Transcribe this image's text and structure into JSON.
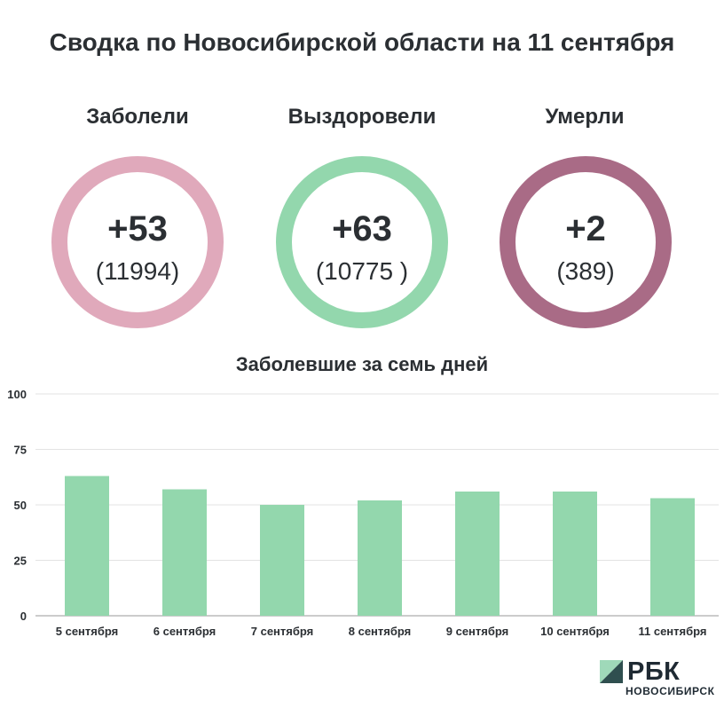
{
  "title": "Сводка по Новосибирской области на 11 сентября",
  "stats": [
    {
      "label": "Заболели",
      "value": "+53",
      "total": "(11994)",
      "color": "#e0a9bb"
    },
    {
      "label": "Выздоровели",
      "value": "+63",
      "total": "(10775 )",
      "color": "#93d7ad"
    },
    {
      "label": "Умерли",
      "value": "+2",
      "total": "(389)",
      "color": "#a96b86"
    }
  ],
  "chart_title": "Заболевшие за семь дней",
  "chart_data": {
    "type": "bar",
    "title": "Заболевшие за семь дней",
    "categories": [
      "5 сентября",
      "6 сентября",
      "7 сентября",
      "8 сентября",
      "9 сентября",
      "10 сентября",
      "11 сентября"
    ],
    "values": [
      63,
      57,
      50,
      52,
      56,
      56,
      53
    ],
    "ylim": [
      0,
      100
    ],
    "yticks": [
      "0",
      "25",
      "50",
      "75",
      "100"
    ],
    "bar_color": "#93d7ad",
    "grid": true
  },
  "logo": {
    "name": "РБК",
    "region": "НОВОСИБИРСК"
  }
}
